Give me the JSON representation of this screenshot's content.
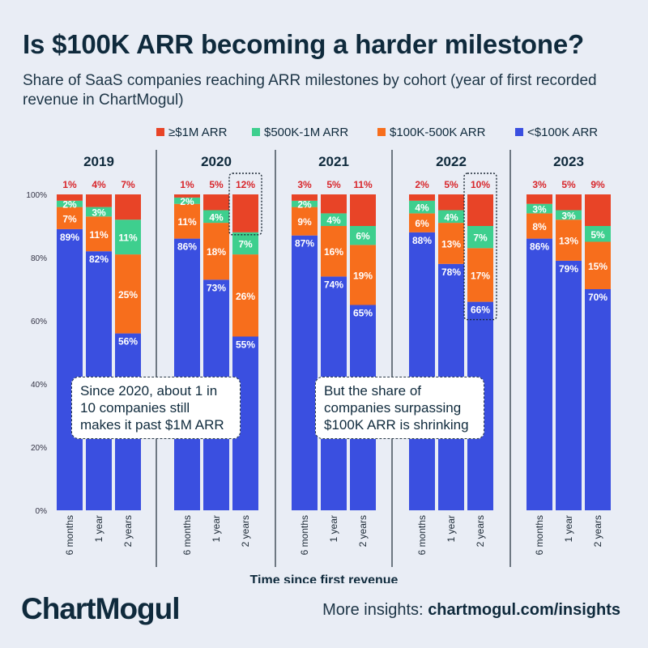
{
  "title": "Is $100K ARR becoming a harder milestone?",
  "subtitle": "Share of SaaS companies reaching ARR milestones by cohort (year of first recorded revenue in ChartMogul)",
  "brand": "ChartMogul",
  "footer": {
    "prefix": "More insights: ",
    "link": "chartmogul.com/insights"
  },
  "callouts": {
    "left": "Since 2020, about 1 in 10 companies still makes it past $1M ARR",
    "right": "But the share of companies surpassing $100K ARR is shrinking"
  },
  "colors": {
    "below_100k": "#3a4fe0",
    "r100k_500k": "#f76e1c",
    "r500k_1m": "#3ecf8e",
    "above_1m": "#e84427",
    "top_label": "#d8262b",
    "background": "#e9edf5"
  },
  "chart_data": {
    "type": "bar",
    "stacked": true,
    "xlabel": "Time since first revenue",
    "ylabel": "",
    "ylim": [
      0,
      100
    ],
    "yticks": [
      "0%",
      "20%",
      "40%",
      "60%",
      "80%",
      "100%"
    ],
    "categories": [
      "6 months",
      "1 year",
      "2 years"
    ],
    "legend": [
      {
        "key": "above_1m",
        "label": "≥$1M ARR"
      },
      {
        "key": "r500k_1m",
        "label": "$500K-1M ARR"
      },
      {
        "key": "r100k_500k",
        "label": "$100K-500K ARR"
      },
      {
        "key": "below_100k",
        "label": "<$100K ARR"
      }
    ],
    "groups": [
      {
        "cohort": "2019",
        "below_100k": [
          89,
          82,
          56
        ],
        "r100k_500k": [
          7,
          11,
          25
        ],
        "r500k_1m": [
          2,
          3,
          11
        ],
        "above_1m": [
          1,
          4,
          7
        ]
      },
      {
        "cohort": "2020",
        "below_100k": [
          86,
          73,
          55
        ],
        "r100k_500k": [
          11,
          18,
          26
        ],
        "r500k_1m": [
          2,
          4,
          7
        ],
        "above_1m": [
          1,
          5,
          12
        ]
      },
      {
        "cohort": "2021",
        "below_100k": [
          87,
          74,
          65
        ],
        "r100k_500k": [
          9,
          16,
          19
        ],
        "r500k_1m": [
          2,
          4,
          6
        ],
        "above_1m": [
          3,
          5,
          11
        ]
      },
      {
        "cohort": "2022",
        "below_100k": [
          88,
          78,
          66
        ],
        "r100k_500k": [
          6,
          13,
          17
        ],
        "r500k_1m": [
          4,
          4,
          7
        ],
        "above_1m": [
          2,
          5,
          10
        ]
      },
      {
        "cohort": "2023",
        "below_100k": [
          86,
          79,
          70
        ],
        "r100k_500k": [
          8,
          13,
          15
        ],
        "r500k_1m": [
          3,
          3,
          5
        ],
        "above_1m": [
          3,
          5,
          9
        ]
      }
    ],
    "highlights": [
      {
        "cohort": "2020",
        "bar": "2 years",
        "segment": "above_1m"
      },
      {
        "cohort": "2022",
        "bar": "2 years",
        "segment": "below_100k"
      }
    ]
  }
}
